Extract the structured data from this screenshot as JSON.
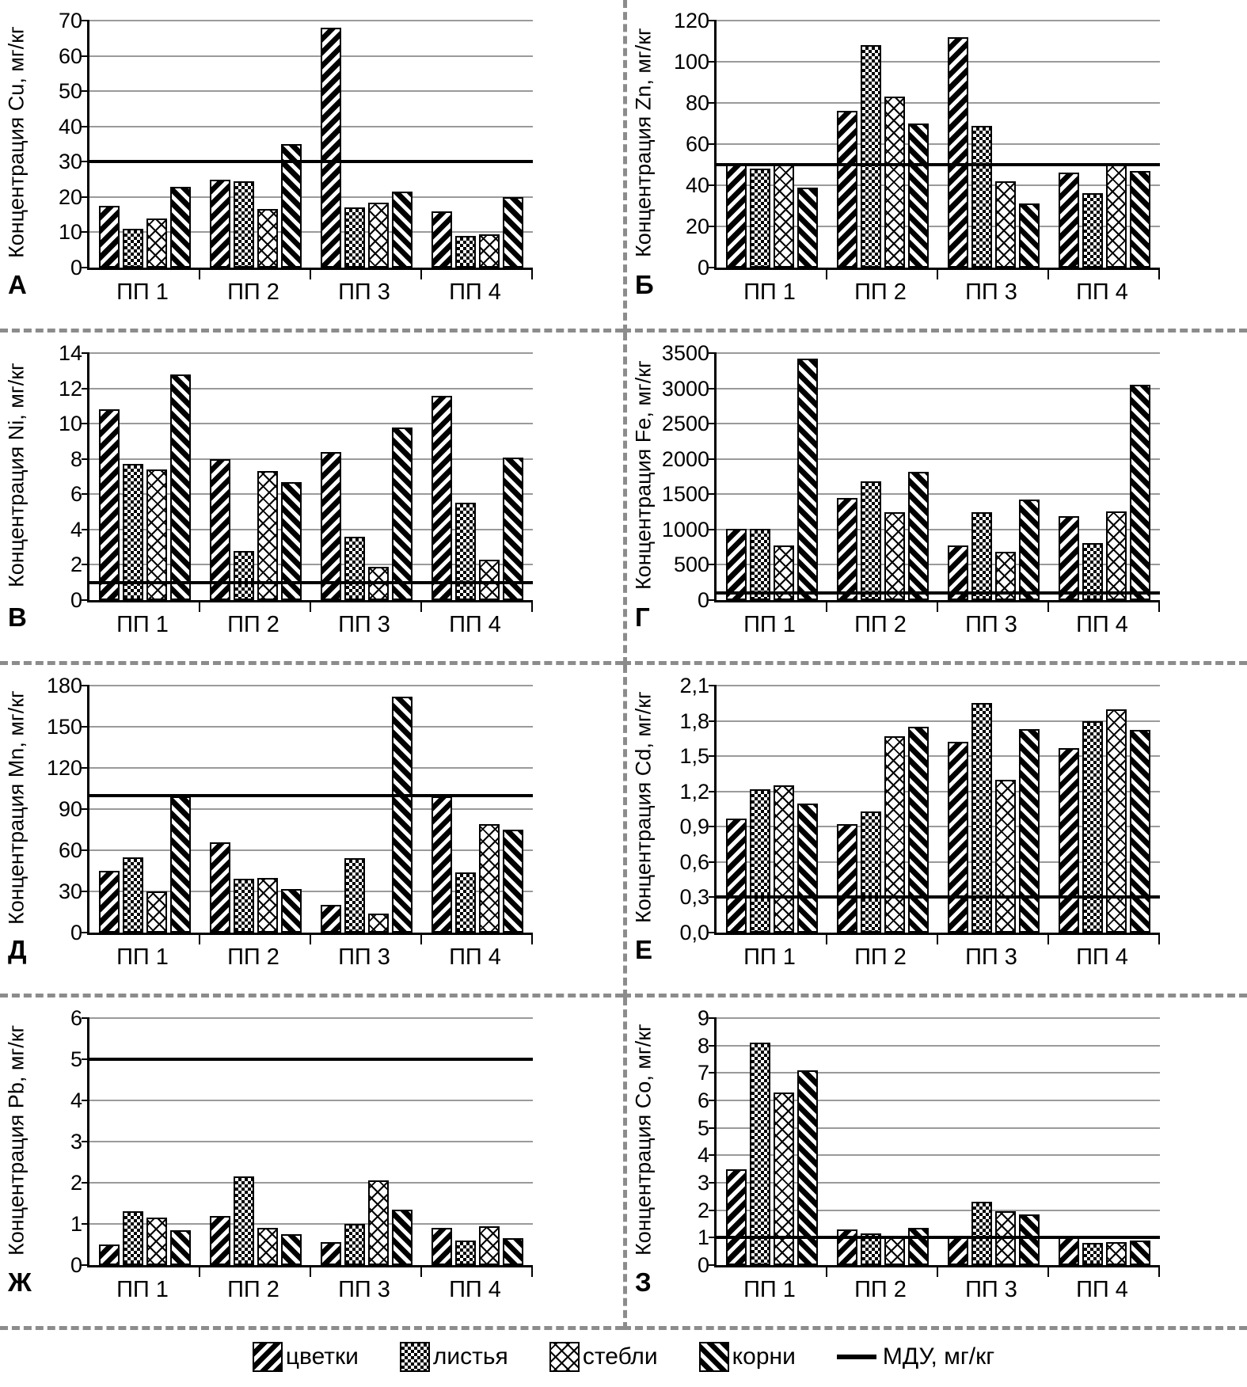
{
  "colors": {
    "bar_outline": "#000000",
    "gridline": "#9a9a9a",
    "separator": "#8c8c8c",
    "mdu_line": "#000000",
    "background": "#ffffff"
  },
  "legend": {
    "items": [
      {
        "key": "flowers",
        "label": "цветки",
        "pattern": "diagonal-up-stripes"
      },
      {
        "key": "leaves",
        "label": "листья",
        "pattern": "dense-checker"
      },
      {
        "key": "stems",
        "label": "стебли",
        "pattern": "diamond-lattice"
      },
      {
        "key": "roots",
        "label": "корни",
        "pattern": "diagonal-down-stripes"
      }
    ],
    "mdu_label": "МДУ, мг/кг"
  },
  "chart_data": [
    {
      "type": "bar",
      "letter": "А",
      "ylabel": "Концентрация Cu, мг/кг",
      "ymax": 70,
      "yticks": [
        "0",
        "10",
        "20",
        "30",
        "40",
        "50",
        "60",
        "70"
      ],
      "mdu": 30,
      "grid": true,
      "categories": [
        "ПП 1",
        "ПП 2",
        "ПП 3",
        "ПП 4"
      ],
      "series": [
        {
          "name": "цветки",
          "values": [
            17.5,
            25,
            68,
            16
          ]
        },
        {
          "name": "листья",
          "values": [
            11,
            24.5,
            17,
            9
          ]
        },
        {
          "name": "стебли",
          "values": [
            14,
            16.5,
            18.5,
            9.5
          ]
        },
        {
          "name": "корни",
          "values": [
            23,
            35,
            21.5,
            20
          ]
        }
      ]
    },
    {
      "type": "bar",
      "letter": "Б",
      "ylabel": "Концентрация Zn, мг/кг",
      "ymax": 120,
      "yticks": [
        "0",
        "20",
        "40",
        "60",
        "80",
        "100",
        "120"
      ],
      "mdu": 50,
      "grid": true,
      "categories": [
        "ПП 1",
        "ПП 2",
        "ПП 3",
        "ПП 4"
      ],
      "series": [
        {
          "name": "цветки",
          "values": [
            50,
            76,
            112,
            46
          ]
        },
        {
          "name": "листья",
          "values": [
            48,
            108,
            69,
            36
          ]
        },
        {
          "name": "стебли",
          "values": [
            50.5,
            83,
            42,
            50
          ]
        },
        {
          "name": "корни",
          "values": [
            39,
            70,
            31,
            47
          ]
        }
      ]
    },
    {
      "type": "bar",
      "letter": "В",
      "ylabel": "Концентрация Ni, мг/кг",
      "ymax": 14,
      "yticks": [
        "0",
        "2",
        "4",
        "6",
        "8",
        "10",
        "12",
        "14"
      ],
      "mdu": 1,
      "grid": true,
      "categories": [
        "ПП 1",
        "ПП 2",
        "ПП 3",
        "ПП 4"
      ],
      "series": [
        {
          "name": "цветки",
          "values": [
            10.8,
            8,
            8.4,
            11.6
          ]
        },
        {
          "name": "листья",
          "values": [
            7.7,
            2.8,
            3.6,
            5.5
          ]
        },
        {
          "name": "стебли",
          "values": [
            7.4,
            7.3,
            1.9,
            2.3
          ]
        },
        {
          "name": "корни",
          "values": [
            12.8,
            6.7,
            9.8,
            8.1
          ]
        }
      ]
    },
    {
      "type": "bar",
      "letter": "Г",
      "ylabel": "Концентрация Fe, мг/кг",
      "ymax": 3500,
      "yticks": [
        "0",
        "500",
        "1000",
        "1500",
        "2000",
        "2500",
        "3000",
        "3500"
      ],
      "mdu": 100,
      "grid": true,
      "categories": [
        "ПП 1",
        "ПП 2",
        "ПП 3",
        "ПП 4"
      ],
      "series": [
        {
          "name": "цветки",
          "values": [
            1010,
            1450,
            770,
            1190
          ]
        },
        {
          "name": "листья",
          "values": [
            1010,
            1680,
            1250,
            810
          ]
        },
        {
          "name": "стебли",
          "values": [
            770,
            1240,
            680,
            1260
          ]
        },
        {
          "name": "корни",
          "values": [
            3420,
            1820,
            1430,
            3050
          ]
        }
      ]
    },
    {
      "type": "bar",
      "letter": "Д",
      "ylabel": "Концентрация Mn, мг/кг",
      "ymax": 180,
      "yticks": [
        "0",
        "30",
        "60",
        "90",
        "120",
        "150",
        "180"
      ],
      "mdu": 100,
      "grid": true,
      "categories": [
        "ПП 1",
        "ПП 2",
        "ПП 3",
        "ПП 4"
      ],
      "series": [
        {
          "name": "цветки",
          "values": [
            45,
            66,
            20,
            99
          ]
        },
        {
          "name": "листья",
          "values": [
            55,
            39,
            54,
            44
          ]
        },
        {
          "name": "стебли",
          "values": [
            30,
            40,
            14,
            79
          ]
        },
        {
          "name": "корни",
          "values": [
            99,
            32,
            172,
            75
          ]
        }
      ]
    },
    {
      "type": "bar",
      "letter": "Е",
      "ylabel": "Концентрация Cd, мг/кг",
      "ymax": 2.1,
      "yticks": [
        "0,0",
        "0,3",
        "0,6",
        "0,9",
        "1,2",
        "1,5",
        "1,8",
        "2,1"
      ],
      "mdu": 0.3,
      "grid": true,
      "categories": [
        "ПП 1",
        "ПП 2",
        "ПП 3",
        "ПП 4"
      ],
      "series": [
        {
          "name": "цветки",
          "values": [
            0.97,
            0.92,
            1.62,
            1.57
          ]
        },
        {
          "name": "листья",
          "values": [
            1.22,
            1.03,
            1.95,
            1.8
          ]
        },
        {
          "name": "стебли",
          "values": [
            1.25,
            1.67,
            1.3,
            1.9
          ]
        },
        {
          "name": "корни",
          "values": [
            1.1,
            1.75,
            1.73,
            1.72
          ]
        }
      ]
    },
    {
      "type": "bar",
      "letter": "Ж",
      "ylabel": "Концентрация Pb, мг/кг",
      "ymax": 6,
      "yticks": [
        "0",
        "1",
        "2",
        "3",
        "4",
        "5",
        "6"
      ],
      "mdu": 5,
      "grid": true,
      "categories": [
        "ПП 1",
        "ПП 2",
        "ПП 3",
        "ПП 4"
      ],
      "series": [
        {
          "name": "цветки",
          "values": [
            0.5,
            1.2,
            0.55,
            0.9
          ]
        },
        {
          "name": "листья",
          "values": [
            1.3,
            2.15,
            1.0,
            0.6
          ]
        },
        {
          "name": "стебли",
          "values": [
            1.15,
            0.9,
            2.05,
            0.95
          ]
        },
        {
          "name": "корни",
          "values": [
            0.85,
            0.75,
            1.35,
            0.65
          ]
        }
      ]
    },
    {
      "type": "bar",
      "letter": "З",
      "ylabel": "Концентрация Co, мг/кг",
      "ymax": 9,
      "yticks": [
        "0",
        "1",
        "2",
        "3",
        "4",
        "5",
        "6",
        "7",
        "8",
        "9"
      ],
      "mdu": 1,
      "grid": true,
      "categories": [
        "ПП 1",
        "ПП 2",
        "ПП 3",
        "ПП 4"
      ],
      "series": [
        {
          "name": "цветки",
          "values": [
            3.5,
            1.3,
            1.05,
            1.0
          ]
        },
        {
          "name": "листья",
          "values": [
            8.1,
            1.15,
            2.3,
            0.8
          ]
        },
        {
          "name": "стебли",
          "values": [
            6.3,
            1.05,
            1.95,
            0.85
          ]
        },
        {
          "name": "корни",
          "values": [
            7.1,
            1.35,
            1.85,
            0.9
          ]
        }
      ]
    }
  ]
}
